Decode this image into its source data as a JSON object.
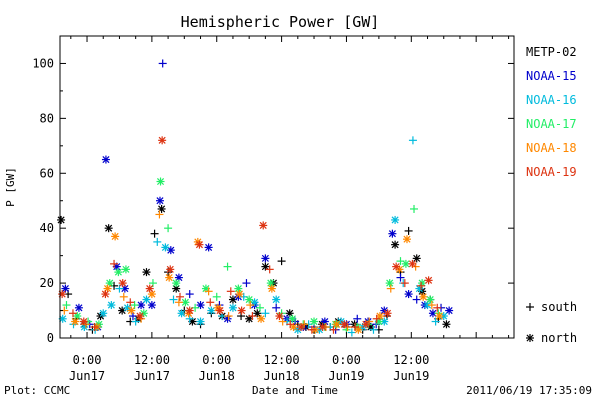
{
  "chart_data": {
    "type": "scatter",
    "title": "Hemispheric Power [GW]",
    "xlabel": "Date and Time",
    "ylabel": "P [GW]",
    "footer_left": "Plot: CCMC",
    "footer_right": "2011/06/19 17:35:09",
    "ylim": [
      0,
      110
    ],
    "yticks": [
      0,
      20,
      40,
      60,
      80,
      100
    ],
    "xlim_hours": [
      -5,
      79
    ],
    "xticks": [
      {
        "h": 0,
        "time": "0:00",
        "day": "Jun17"
      },
      {
        "h": 12,
        "time": "12:00",
        "day": "Jun17"
      },
      {
        "h": 24,
        "time": "0:00",
        "day": "Jun18"
      },
      {
        "h": 36,
        "time": "12:00",
        "day": "Jun18"
      },
      {
        "h": 48,
        "time": "0:00",
        "day": "Jun19"
      },
      {
        "h": 60,
        "time": "12:00",
        "day": "Jun19"
      }
    ],
    "markers": [
      {
        "symbol": "+",
        "label": "south"
      },
      {
        "symbol": "*",
        "label": "north"
      }
    ],
    "series": [
      {
        "name": "METP-02",
        "color": "#000000",
        "points": [
          [
            -4.8,
            43,
            "*"
          ],
          [
            -3.5,
            16,
            "+"
          ],
          [
            -2,
            7,
            "+"
          ],
          [
            -0.5,
            5,
            "*"
          ],
          [
            1,
            3,
            "+"
          ],
          [
            2.5,
            8,
            "*"
          ],
          [
            4,
            40,
            "*"
          ],
          [
            5,
            19,
            "+"
          ],
          [
            6.5,
            10,
            "*"
          ],
          [
            8,
            6,
            "+"
          ],
          [
            9.5,
            7,
            "*"
          ],
          [
            11,
            24,
            "*"
          ],
          [
            12.5,
            38,
            "+"
          ],
          [
            13.8,
            47,
            "*"
          ],
          [
            15,
            24,
            "+"
          ],
          [
            16.5,
            18,
            "*"
          ],
          [
            18,
            10,
            "+"
          ],
          [
            19.5,
            6,
            "*"
          ],
          [
            21,
            5,
            "+"
          ],
          [
            23,
            9,
            "+"
          ],
          [
            25,
            8,
            "*"
          ],
          [
            27,
            14,
            "*"
          ],
          [
            28.5,
            8,
            "+"
          ],
          [
            30,
            7,
            "*"
          ],
          [
            31.5,
            9,
            "*"
          ],
          [
            33,
            26,
            "*"
          ],
          [
            34.5,
            20,
            "*"
          ],
          [
            36,
            28,
            "+"
          ],
          [
            37.5,
            9,
            "*"
          ],
          [
            39,
            5,
            "+"
          ],
          [
            40.5,
            4,
            "*"
          ],
          [
            42,
            3,
            "+"
          ],
          [
            43.5,
            5,
            "*"
          ],
          [
            45,
            4,
            "+"
          ],
          [
            46.5,
            6,
            "*"
          ],
          [
            48,
            4,
            "+"
          ],
          [
            49.5,
            5,
            "*"
          ],
          [
            51,
            3,
            "+"
          ],
          [
            52.5,
            4,
            "*"
          ],
          [
            54,
            3,
            "+"
          ],
          [
            55.5,
            8,
            "+"
          ],
          [
            57,
            34,
            "*"
          ],
          [
            58,
            24,
            "+"
          ],
          [
            59.5,
            39,
            "+"
          ],
          [
            61,
            29,
            "*"
          ],
          [
            62,
            17,
            "*"
          ],
          [
            63.5,
            14,
            "+"
          ],
          [
            65,
            7,
            "+"
          ],
          [
            66.5,
            5,
            "*"
          ]
        ]
      },
      {
        "name": "NOAA-15",
        "color": "#0000cc",
        "points": [
          [
            -4,
            18,
            "*"
          ],
          [
            -1.5,
            11,
            "*"
          ],
          [
            0.5,
            5,
            "+"
          ],
          [
            2,
            4,
            "*"
          ],
          [
            3.5,
            65,
            "*"
          ],
          [
            5.5,
            26,
            "*"
          ],
          [
            7,
            18,
            "*"
          ],
          [
            8.5,
            8,
            "+"
          ],
          [
            10,
            12,
            "*"
          ],
          [
            12,
            12,
            "*"
          ],
          [
            13.5,
            50,
            "*"
          ],
          [
            14,
            100,
            "+"
          ],
          [
            15.5,
            32,
            "*"
          ],
          [
            17,
            22,
            "*"
          ],
          [
            19,
            16,
            "+"
          ],
          [
            21,
            12,
            "*"
          ],
          [
            22.5,
            33,
            "*"
          ],
          [
            24.5,
            12,
            "+"
          ],
          [
            26,
            7,
            "*"
          ],
          [
            28,
            15,
            "*"
          ],
          [
            29.5,
            20,
            "+"
          ],
          [
            31,
            12,
            "*"
          ],
          [
            33,
            29,
            "*"
          ],
          [
            35,
            11,
            "+"
          ],
          [
            37,
            7,
            "*"
          ],
          [
            38.5,
            6,
            "+"
          ],
          [
            40,
            4,
            "*"
          ],
          [
            42,
            4,
            "+"
          ],
          [
            44,
            6,
            "*"
          ],
          [
            46,
            3,
            "+"
          ],
          [
            48,
            5,
            "*"
          ],
          [
            50,
            7,
            "+"
          ],
          [
            52,
            6,
            "*"
          ],
          [
            53.5,
            5,
            "+"
          ],
          [
            55,
            10,
            "*"
          ],
          [
            56.5,
            38,
            "*"
          ],
          [
            58,
            22,
            "+"
          ],
          [
            59.5,
            16,
            "*"
          ],
          [
            61,
            14,
            "+"
          ],
          [
            62.5,
            12,
            "*"
          ],
          [
            64,
            9,
            "*"
          ],
          [
            65.5,
            11,
            "+"
          ],
          [
            67,
            10,
            "*"
          ]
        ]
      },
      {
        "name": "NOAA-16",
        "color": "#00bbdd",
        "points": [
          [
            -4.5,
            7,
            "*"
          ],
          [
            -2.5,
            5,
            "+"
          ],
          [
            -0.5,
            4,
            "*"
          ],
          [
            1.5,
            3,
            "+"
          ],
          [
            3,
            9,
            "*"
          ],
          [
            4.5,
            12,
            "*"
          ],
          [
            6,
            18,
            "+"
          ],
          [
            7.5,
            11,
            "*"
          ],
          [
            9,
            6,
            "+"
          ],
          [
            11,
            14,
            "*"
          ],
          [
            13,
            35,
            "+"
          ],
          [
            14.5,
            33,
            "*"
          ],
          [
            16,
            14,
            "+"
          ],
          [
            17.5,
            9,
            "*"
          ],
          [
            19,
            7,
            "+"
          ],
          [
            21,
            6,
            "*"
          ],
          [
            23,
            10,
            "*"
          ],
          [
            25,
            8,
            "+"
          ],
          [
            27,
            11,
            "*"
          ],
          [
            29,
            15,
            "+"
          ],
          [
            31,
            13,
            "*"
          ],
          [
            33,
            9,
            "+"
          ],
          [
            35,
            14,
            "*"
          ],
          [
            37,
            6,
            "+"
          ],
          [
            39,
            3,
            "*"
          ],
          [
            41,
            5,
            "+"
          ],
          [
            43,
            3,
            "*"
          ],
          [
            45,
            4,
            "+"
          ],
          [
            47,
            6,
            "*"
          ],
          [
            49,
            2,
            "+"
          ],
          [
            51,
            4,
            "*"
          ],
          [
            53,
            3,
            "+"
          ],
          [
            55,
            6,
            "*"
          ],
          [
            57,
            43,
            "*"
          ],
          [
            58.5,
            20,
            "+"
          ],
          [
            60.3,
            72,
            "+"
          ],
          [
            61.5,
            18,
            "*"
          ],
          [
            63,
            12,
            "*"
          ],
          [
            64.5,
            6,
            "+"
          ],
          [
            66,
            8,
            "*"
          ]
        ]
      },
      {
        "name": "NOAA-17",
        "color": "#22ee66",
        "points": [
          [
            -3.8,
            12,
            "+"
          ],
          [
            -1.8,
            8,
            "*"
          ],
          [
            0.2,
            6,
            "+"
          ],
          [
            2.2,
            5,
            "*"
          ],
          [
            4.2,
            20,
            "*"
          ],
          [
            5.8,
            24,
            "*"
          ],
          [
            7.2,
            25,
            "*"
          ],
          [
            8.8,
            12,
            "+"
          ],
          [
            10.5,
            9,
            "*"
          ],
          [
            12.2,
            20,
            "+"
          ],
          [
            13.6,
            57,
            "*"
          ],
          [
            15,
            40,
            "+"
          ],
          [
            16.5,
            20,
            "*"
          ],
          [
            18.2,
            13,
            "*"
          ],
          [
            20,
            11,
            "+"
          ],
          [
            22,
            18,
            "*"
          ],
          [
            24,
            15,
            "+"
          ],
          [
            26,
            26,
            "+"
          ],
          [
            28,
            18,
            "*"
          ],
          [
            30,
            14,
            "*"
          ],
          [
            32,
            11,
            "+"
          ],
          [
            34,
            20,
            "*"
          ],
          [
            36,
            9,
            "+"
          ],
          [
            38,
            7,
            "*"
          ],
          [
            40,
            5,
            "+"
          ],
          [
            42,
            6,
            "*"
          ],
          [
            44,
            4,
            "+"
          ],
          [
            46,
            5,
            "*"
          ],
          [
            48,
            3,
            "+"
          ],
          [
            50,
            4,
            "*"
          ],
          [
            52,
            5,
            "+"
          ],
          [
            54,
            6,
            "*"
          ],
          [
            56,
            20,
            "*"
          ],
          [
            58,
            28,
            "+"
          ],
          [
            59,
            27,
            "*"
          ],
          [
            60.5,
            47,
            "+"
          ],
          [
            62,
            20,
            "*"
          ],
          [
            63.5,
            14,
            "*"
          ],
          [
            65,
            9,
            "+"
          ]
        ]
      },
      {
        "name": "NOAA-18",
        "color": "#ff8800",
        "points": [
          [
            -4.2,
            10,
            "+"
          ],
          [
            -2.2,
            6,
            "*"
          ],
          [
            -0.2,
            5,
            "+"
          ],
          [
            1.8,
            4,
            "*"
          ],
          [
            3.8,
            18,
            "*"
          ],
          [
            5.2,
            37,
            "*"
          ],
          [
            6.8,
            15,
            "+"
          ],
          [
            8.2,
            10,
            "*"
          ],
          [
            10,
            7,
            "+"
          ],
          [
            12,
            16,
            "*"
          ],
          [
            13.4,
            45,
            "+"
          ],
          [
            15.2,
            22,
            "*"
          ],
          [
            17,
            13,
            "+"
          ],
          [
            18.8,
            9,
            "*"
          ],
          [
            20.5,
            35,
            "*"
          ],
          [
            22.5,
            17,
            "+"
          ],
          [
            24.2,
            11,
            "*"
          ],
          [
            26.2,
            8,
            "+"
          ],
          [
            28.2,
            16,
            "*"
          ],
          [
            30.2,
            12,
            "+"
          ],
          [
            32.2,
            7,
            "*"
          ],
          [
            34.2,
            18,
            "*"
          ],
          [
            36.2,
            6,
            "+"
          ],
          [
            38.2,
            4,
            "*"
          ],
          [
            40.2,
            5,
            "+"
          ],
          [
            42.2,
            3,
            "*"
          ],
          [
            44.2,
            4,
            "+"
          ],
          [
            46.2,
            5,
            "*"
          ],
          [
            48.2,
            4,
            "+"
          ],
          [
            50.2,
            3,
            "*"
          ],
          [
            52.2,
            6,
            "+"
          ],
          [
            54.2,
            8,
            "*"
          ],
          [
            56.2,
            18,
            "+"
          ],
          [
            57.8,
            25,
            "*"
          ],
          [
            59.2,
            36,
            "*"
          ],
          [
            60.8,
            26,
            "+"
          ],
          [
            62.2,
            15,
            "*"
          ],
          [
            63.8,
            12,
            "+"
          ],
          [
            65.2,
            8,
            "*"
          ]
        ]
      },
      {
        "name": "NOAA-19",
        "color": "#dd3311",
        "points": [
          [
            -4.6,
            16,
            "*"
          ],
          [
            -2.6,
            9,
            "+"
          ],
          [
            -0.6,
            6,
            "*"
          ],
          [
            1.4,
            4,
            "+"
          ],
          [
            3.4,
            16,
            "*"
          ],
          [
            5,
            27,
            "+"
          ],
          [
            6.6,
            20,
            "*"
          ],
          [
            8,
            13,
            "+"
          ],
          [
            9.8,
            8,
            "*"
          ],
          [
            11.6,
            18,
            "*"
          ],
          [
            13.9,
            72,
            "*"
          ],
          [
            15.4,
            25,
            "*"
          ],
          [
            17.2,
            15,
            "+"
          ],
          [
            19,
            10,
            "*"
          ],
          [
            20.8,
            34,
            "*"
          ],
          [
            22.8,
            13,
            "+"
          ],
          [
            24.6,
            10,
            "*"
          ],
          [
            26.6,
            17,
            "+"
          ],
          [
            28.6,
            10,
            "*"
          ],
          [
            30.6,
            8,
            "+"
          ],
          [
            32.6,
            41,
            "*"
          ],
          [
            33.8,
            25,
            "+"
          ],
          [
            35.6,
            8,
            "*"
          ],
          [
            37.6,
            5,
            "+"
          ],
          [
            39.6,
            4,
            "*"
          ],
          [
            41.6,
            3,
            "+"
          ],
          [
            43.6,
            4,
            "*"
          ],
          [
            45.6,
            3,
            "+"
          ],
          [
            47.6,
            5,
            "*"
          ],
          [
            49.6,
            4,
            "+"
          ],
          [
            51.6,
            5,
            "*"
          ],
          [
            53.6,
            7,
            "+"
          ],
          [
            55.6,
            9,
            "*"
          ],
          [
            57.2,
            26,
            "*"
          ],
          [
            58.8,
            20,
            "+"
          ],
          [
            60.2,
            27,
            "*"
          ],
          [
            61.8,
            19,
            "+"
          ],
          [
            63.2,
            21,
            "*"
          ],
          [
            64.8,
            11,
            "+"
          ]
        ]
      }
    ]
  }
}
